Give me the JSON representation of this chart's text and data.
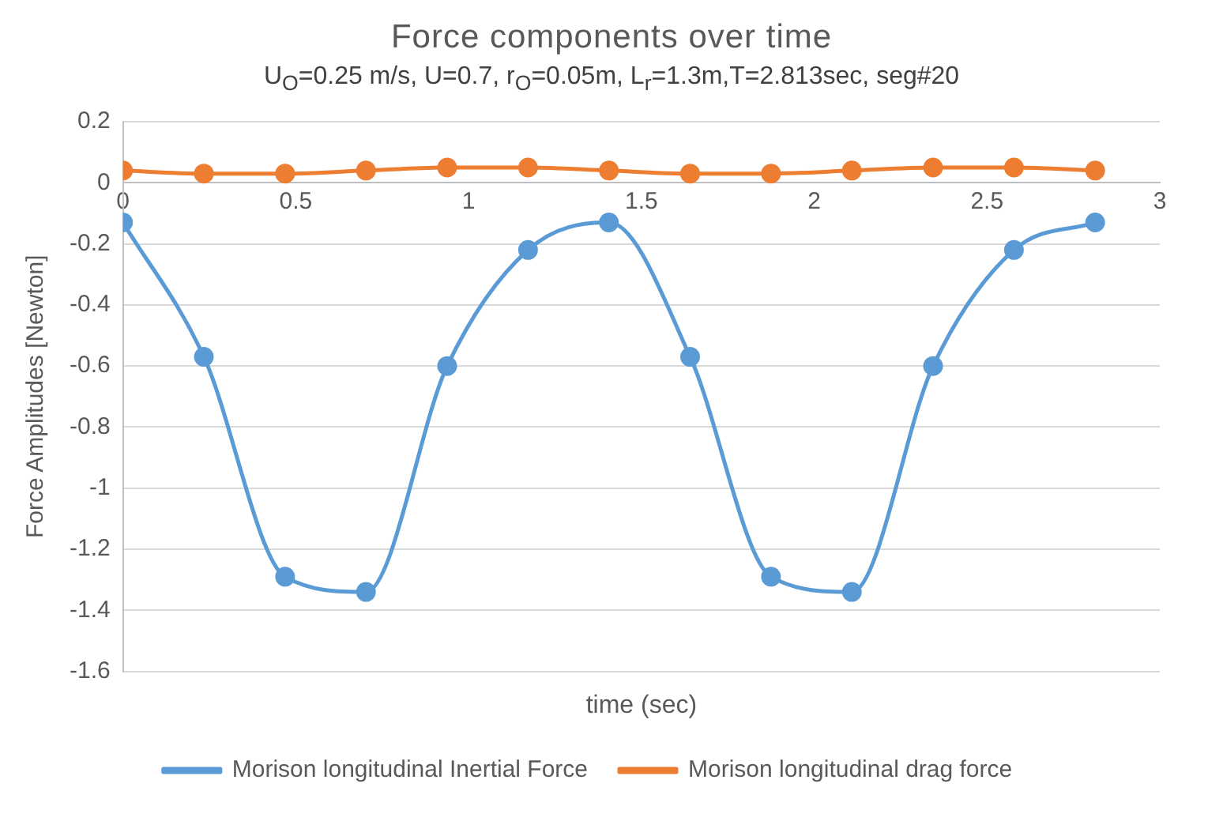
{
  "chart_data": {
    "type": "line",
    "title": "Force components over time",
    "subtitle": "U$_{O}$=0.25 m/s, U=0.7, r$_{O}$=0.05m, L$_{r}$=1.3m,T=2.813sec, seg#20",
    "xlabel": "time (sec)",
    "ylabel": "Force Amplitudes [Newton]",
    "x": [
      0,
      0.234,
      0.469,
      0.703,
      0.938,
      1.172,
      1.406,
      1.641,
      1.875,
      2.109,
      2.344,
      2.578,
      2.813
    ],
    "series": [
      {
        "name": "Morison longitudinal Inertial Force",
        "color": "#5b9bd5",
        "values": [
          -0.13,
          -0.57,
          -1.29,
          -1.34,
          -0.6,
          -0.22,
          -0.13,
          -0.57,
          -1.29,
          -1.34,
          -0.6,
          -0.22,
          -0.13
        ]
      },
      {
        "name": "Morison longitudinal drag force",
        "color": "#ed7d31",
        "values": [
          0.04,
          0.03,
          0.03,
          0.04,
          0.05,
          0.05,
          0.04,
          0.03,
          0.03,
          0.04,
          0.05,
          0.05,
          0.04
        ]
      }
    ],
    "xlim": [
      0,
      3
    ],
    "xticks": [
      0,
      0.5,
      1,
      1.5,
      2,
      2.5,
      3
    ],
    "ylim": [
      -1.6,
      0.2
    ],
    "yticks": [
      -1.6,
      -1.4,
      -1.2,
      -1,
      -0.8,
      -0.6,
      -0.4,
      -0.2,
      0,
      0.2
    ],
    "grid": "y",
    "legend": "bottom",
    "marker": "circle",
    "line_style": "solid"
  }
}
